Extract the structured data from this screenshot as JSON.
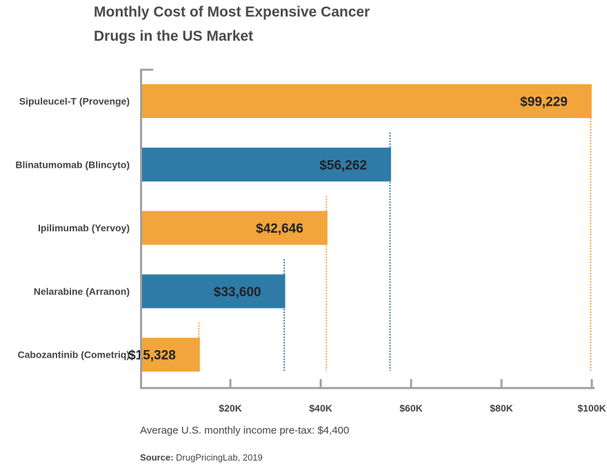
{
  "chart_data": {
    "type": "bar",
    "orientation": "horizontal",
    "title": "Monthly Cost of Most Expensive Cancer Drugs in the US Market",
    "title_lines": [
      "Monthly Cost of Most Expensive Cancer",
      "Drugs in the US Market"
    ],
    "categories": [
      "Sipuleucel-T (Provenge)",
      "Blinatumomab (Blincyto)",
      "Ipilimumab (Yervoy)",
      "Nelarabine (Arranon)",
      "Cabozantinib (Cometriq)"
    ],
    "values": [
      99229,
      56262,
      42646,
      33600,
      15328
    ],
    "data_labels": [
      "$99,229",
      "$56,262",
      "$42,646",
      "$33,600",
      "$15,328"
    ],
    "bar_colors": [
      "#f2a53a",
      "#2f7ba8",
      "#f2a53a",
      "#2f7ba8",
      "#f2a53a"
    ],
    "x_ticks": [
      20000,
      40000,
      60000,
      80000,
      100000
    ],
    "x_tick_labels": [
      "$20K",
      "$40K",
      "$60K",
      "$80K",
      "$100K"
    ],
    "xlim": [
      0,
      100000
    ],
    "grid": false,
    "xlabel": "",
    "ylabel": ""
  },
  "note": "Average U.S. monthly income pre-tax: $4,400",
  "source": {
    "label": "Source:",
    "text": " DrugPricingLab, 2019"
  }
}
